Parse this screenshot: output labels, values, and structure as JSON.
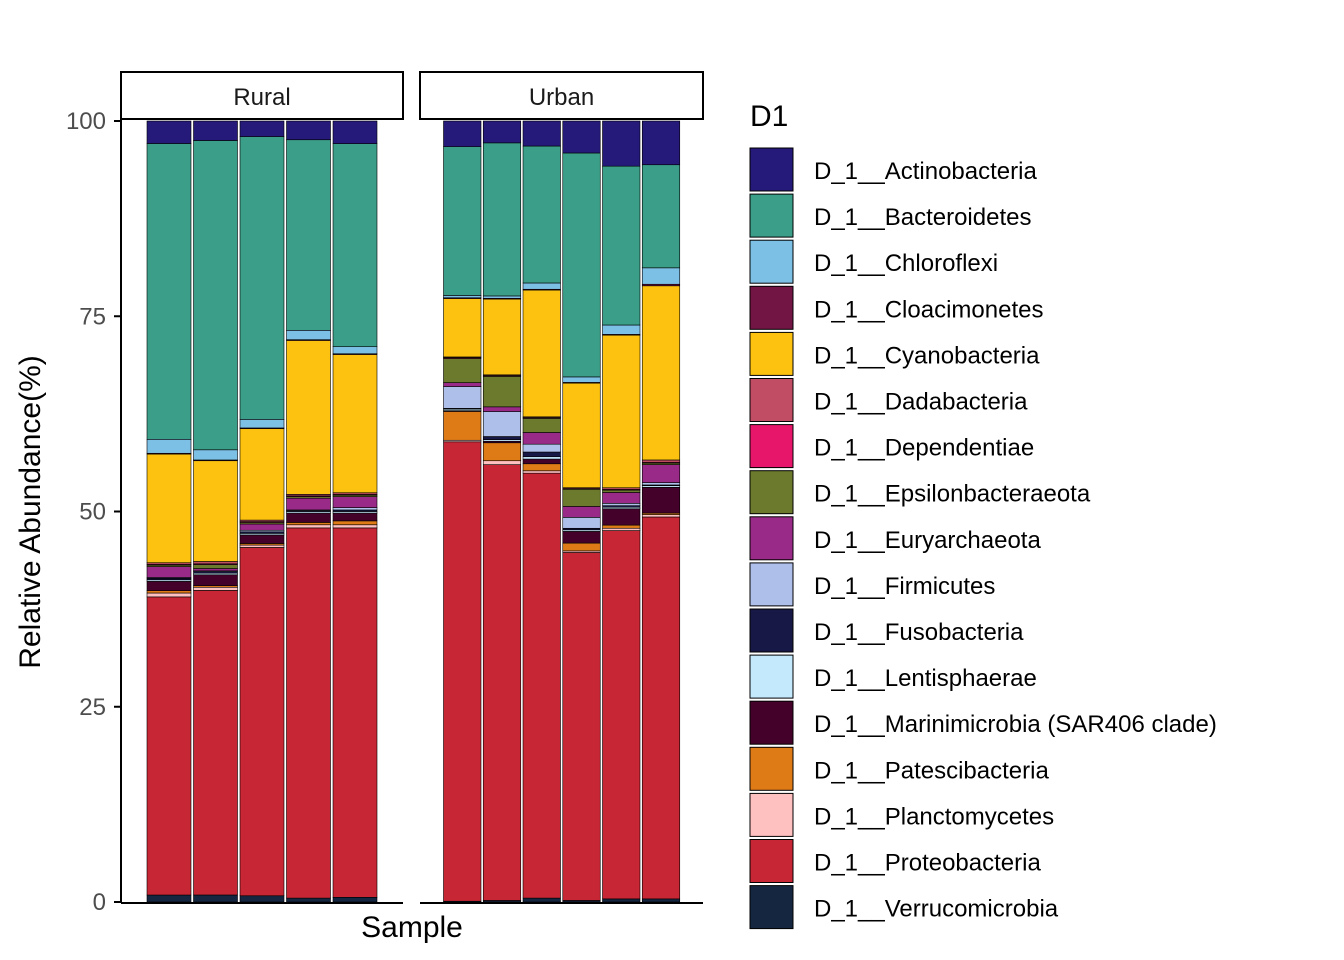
{
  "chart_data": {
    "type": "bar",
    "stacked": true,
    "ylabel": "Relative Abundance(%)",
    "xlabel": "Sample",
    "ylim": [
      0,
      100
    ],
    "yticks": [
      0,
      25,
      50,
      75,
      100
    ],
    "grid": false,
    "legend_placement": "right",
    "legend": {
      "title": "D1",
      "entries": [
        {
          "name": "D_1__Actinobacteria",
          "color": "#25197a"
        },
        {
          "name": "D_1__Bacteroidetes",
          "color": "#3b9e88"
        },
        {
          "name": "D_1__Chloroflexi",
          "color": "#7dc0e6"
        },
        {
          "name": "D_1__Cloacimonetes",
          "color": "#731544"
        },
        {
          "name": "D_1__Cyanobacteria",
          "color": "#fdc20f"
        },
        {
          "name": "D_1__Dadabacteria",
          "color": "#c04d63"
        },
        {
          "name": "D_1__Dependentiae",
          "color": "#e8166b"
        },
        {
          "name": "D_1__Epsilonbacteraeota",
          "color": "#6b7a2d"
        },
        {
          "name": "D_1__Euryarchaeota",
          "color": "#9a2a88"
        },
        {
          "name": "D_1__Firmicutes",
          "color": "#aebfe9"
        },
        {
          "name": "D_1__Fusobacteria",
          "color": "#171846"
        },
        {
          "name": "D_1__Lentisphaerae",
          "color": "#c4e8fc"
        },
        {
          "name": "D_1__Marinimicrobia (SAR406 clade)",
          "color": "#44022a"
        },
        {
          "name": "D_1__Patescibacteria",
          "color": "#de7b17"
        },
        {
          "name": "D_1__Planctomycetes",
          "color": "#ffc0c0"
        },
        {
          "name": "D_1__Proteobacteria",
          "color": "#c72635"
        },
        {
          "name": "D_1__Verrucomicrobia",
          "color": "#152640"
        }
      ]
    },
    "facets": [
      {
        "label": "Rural",
        "samples": [
          {
            "Verrucomicrobia": 0.9,
            "Proteobacteria": 38.4,
            "Planctomycetes": 0.5,
            "Patescibacteria": 0.3,
            "Marinimicrobia (SAR406 clade)": 1.2,
            "Lentisphaerae": 0.2,
            "Fusobacteria": 0.2,
            "Firmicutes": 0.1,
            "Euryarchaeota": 1.4,
            "Epsilonbacteraeota": 0.2,
            "Dependentiae": 0.1,
            "Dadabacteria": 0.2,
            "Cyanobacteria": 14.0,
            "Cloacimonetes": 0.1,
            "Chloroflexi": 1.8,
            "Bacteroidetes": 38.1,
            "Actinobacteria": 2.9
          },
          {
            "Verrucomicrobia": 0.9,
            "Proteobacteria": 39.0,
            "Planctomycetes": 0.4,
            "Patescibacteria": 0.2,
            "Marinimicrobia (SAR406 clade)": 1.4,
            "Lentisphaerae": 0.2,
            "Fusobacteria": 0.2,
            "Firmicutes": 0.1,
            "Euryarchaeota": 0.3,
            "Epsilonbacteraeota": 0.5,
            "Dependentiae": 0.1,
            "Dadabacteria": 0.3,
            "Cyanobacteria": 12.9,
            "Cloacimonetes": 0.1,
            "Chloroflexi": 1.3,
            "Bacteroidetes": 39.6,
            "Actinobacteria": 2.5
          },
          {
            "Verrucomicrobia": 0.8,
            "Proteobacteria": 44.6,
            "Planctomycetes": 0.3,
            "Patescibacteria": 0.2,
            "Marinimicrobia (SAR406 clade)": 1.1,
            "Lentisphaerae": 0.2,
            "Fusobacteria": 0.2,
            "Firmicutes": 0.2,
            "Euryarchaeota": 0.8,
            "Epsilonbacteraeota": 0.2,
            "Dependentiae": 0.1,
            "Dadabacteria": 0.2,
            "Cyanobacteria": 11.7,
            "Cloacimonetes": 0.1,
            "Chloroflexi": 1.1,
            "Bacteroidetes": 36.2,
            "Actinobacteria": 2.0
          },
          {
            "Verrucomicrobia": 0.5,
            "Proteobacteria": 47.4,
            "Planctomycetes": 0.4,
            "Patescibacteria": 0.3,
            "Marinimicrobia (SAR406 clade)": 1.2,
            "Lentisphaerae": 0.2,
            "Fusobacteria": 0.1,
            "Firmicutes": 0.1,
            "Euryarchaeota": 1.5,
            "Epsilonbacteraeota": 0.2,
            "Dependentiae": 0.1,
            "Dadabacteria": 0.2,
            "Cyanobacteria": 19.7,
            "Cloacimonetes": 0.1,
            "Chloroflexi": 1.2,
            "Bacteroidetes": 24.4,
            "Actinobacteria": 2.4
          },
          {
            "Verrucomicrobia": 0.6,
            "Proteobacteria": 47.3,
            "Planctomycetes": 0.4,
            "Patescibacteria": 0.5,
            "Marinimicrobia (SAR406 clade)": 1.0,
            "Lentisphaerae": 0.2,
            "Fusobacteria": 0.2,
            "Firmicutes": 0.3,
            "Euryarchaeota": 1.4,
            "Epsilonbacteraeota": 0.2,
            "Dependentiae": 0.1,
            "Dadabacteria": 0.2,
            "Cyanobacteria": 17.7,
            "Cloacimonetes": 0.1,
            "Chloroflexi": 0.9,
            "Bacteroidetes": 26.0,
            "Actinobacteria": 2.9
          }
        ]
      },
      {
        "label": "Urban",
        "samples": [
          {
            "Verrucomicrobia": 0.1,
            "Proteobacteria": 59.0,
            "Planctomycetes": 0.2,
            "Patescibacteria": 3.7,
            "Marinimicrobia (SAR406 clade)": 0.1,
            "Lentisphaerae": 0.2,
            "Fusobacteria": 0.1,
            "Firmicutes": 2.8,
            "Euryarchaeota": 0.5,
            "Epsilonbacteraeota": 3.1,
            "Dependentiae": 0.1,
            "Dadabacteria": 0.1,
            "Cyanobacteria": 7.5,
            "Cloacimonetes": 0.1,
            "Chloroflexi": 0.3,
            "Bacteroidetes": 19.1,
            "Actinobacteria": 3.3
          },
          {
            "Verrucomicrobia": 0.2,
            "Proteobacteria": 55.8,
            "Planctomycetes": 0.5,
            "Patescibacteria": 2.3,
            "Marinimicrobia (SAR406 clade)": 0.2,
            "Lentisphaerae": 0.2,
            "Fusobacteria": 0.4,
            "Firmicutes": 3.2,
            "Euryarchaeota": 0.6,
            "Epsilonbacteraeota": 3.9,
            "Dependentiae": 0.1,
            "Dadabacteria": 0.1,
            "Cyanobacteria": 9.7,
            "Cloacimonetes": 0.1,
            "Chloroflexi": 0.3,
            "Bacteroidetes": 19.6,
            "Actinobacteria": 2.8
          },
          {
            "Verrucomicrobia": 0.5,
            "Proteobacteria": 54.3,
            "Planctomycetes": 0.3,
            "Patescibacteria": 0.9,
            "Marinimicrobia (SAR406 clade)": 0.6,
            "Lentisphaerae": 0.3,
            "Fusobacteria": 0.6,
            "Firmicutes": 1.0,
            "Euryarchaeota": 1.5,
            "Epsilonbacteraeota": 1.8,
            "Dependentiae": 0.1,
            "Dadabacteria": 0.1,
            "Cyanobacteria": 16.2,
            "Cloacimonetes": 0.1,
            "Chloroflexi": 0.8,
            "Bacteroidetes": 17.5,
            "Actinobacteria": 3.2
          },
          {
            "Verrucomicrobia": 0.2,
            "Proteobacteria": 44.6,
            "Planctomycetes": 0.2,
            "Patescibacteria": 1.0,
            "Marinimicrobia (SAR406 clade)": 1.5,
            "Lentisphaerae": 0.2,
            "Fusobacteria": 0.2,
            "Firmicutes": 1.4,
            "Euryarchaeota": 1.4,
            "Epsilonbacteraeota": 2.2,
            "Dependentiae": 0.1,
            "Dadabacteria": 0.1,
            "Cyanobacteria": 13.4,
            "Cloacimonetes": 0.1,
            "Chloroflexi": 0.7,
            "Bacteroidetes": 28.7,
            "Actinobacteria": 4.1
          },
          {
            "Verrucomicrobia": 0.4,
            "Proteobacteria": 47.3,
            "Planctomycetes": 0.3,
            "Patescibacteria": 0.4,
            "Marinimicrobia (SAR406 clade)": 2.1,
            "Lentisphaerae": 0.2,
            "Fusobacteria": 0.2,
            "Firmicutes": 0.3,
            "Euryarchaeota": 1.4,
            "Epsilonbacteraeota": 0.3,
            "Dependentiae": 0.1,
            "Dadabacteria": 0.2,
            "Cyanobacteria": 19.6,
            "Cloacimonetes": 0.1,
            "Chloroflexi": 1.2,
            "Bacteroidetes": 20.4,
            "Actinobacteria": 5.8
          },
          {
            "Verrucomicrobia": 0.4,
            "Proteobacteria": 48.9,
            "Planctomycetes": 0.3,
            "Patescibacteria": 0.2,
            "Marinimicrobia (SAR406 clade)": 3.3,
            "Lentisphaerae": 0.2,
            "Fusobacteria": 0.1,
            "Firmicutes": 0.3,
            "Euryarchaeota": 2.3,
            "Epsilonbacteraeota": 0.2,
            "Dependentiae": 0.1,
            "Dadabacteria": 0.3,
            "Cyanobacteria": 22.3,
            "Cloacimonetes": 0.2,
            "Chloroflexi": 2.1,
            "Bacteroidetes": 13.2,
            "Actinobacteria": 5.6
          }
        ]
      }
    ]
  }
}
